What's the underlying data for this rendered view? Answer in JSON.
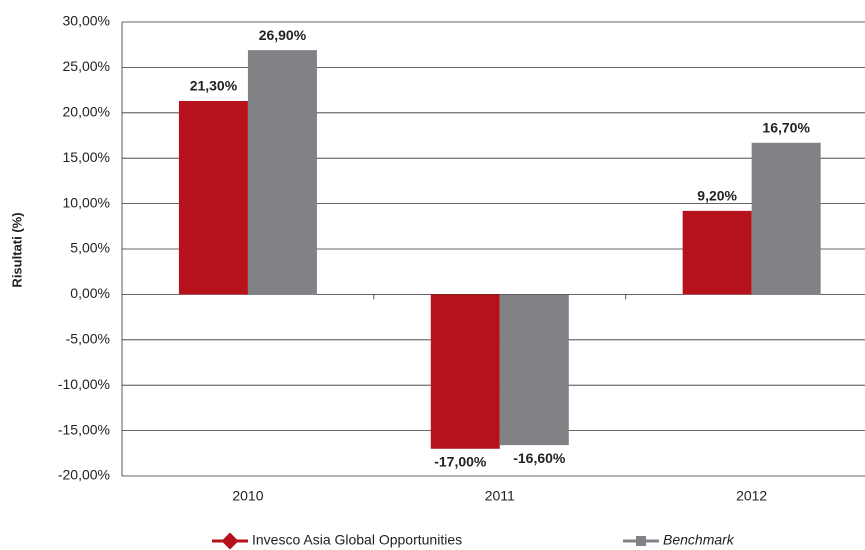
{
  "chart_data": {
    "type": "bar",
    "y_label": "Risultati (%)",
    "categories": [
      "2010",
      "2011",
      "2012"
    ],
    "series": [
      {
        "name": "Invesco Asia Global Opportunities",
        "color": "#b5121b",
        "values": [
          21.3,
          -17.0,
          9.2
        ],
        "value_labels": [
          "21,30%",
          "-17,00%",
          "9,20%"
        ]
      },
      {
        "name": "Benchmark",
        "color": "#808285",
        "values": [
          26.9,
          -16.6,
          16.7
        ],
        "value_labels": [
          "26,90%",
          "-16,60%",
          "16,70%"
        ]
      }
    ],
    "ylim": [
      -20,
      30
    ],
    "yticks": [
      {
        "value": -20,
        "label": "-20,00%"
      },
      {
        "value": -15,
        "label": "-15,00%"
      },
      {
        "value": -10,
        "label": "-10,00%"
      },
      {
        "value": -5,
        "label": "-5,00%"
      },
      {
        "value": 0,
        "label": "0,00%"
      },
      {
        "value": 5,
        "label": "5,00%"
      },
      {
        "value": 10,
        "label": "10,00%"
      },
      {
        "value": 15,
        "label": "15,00%"
      },
      {
        "value": 20,
        "label": "20,00%"
      },
      {
        "value": 25,
        "label": "25,00%"
      },
      {
        "value": 30,
        "label": "30,00%"
      }
    ],
    "grid": true
  }
}
